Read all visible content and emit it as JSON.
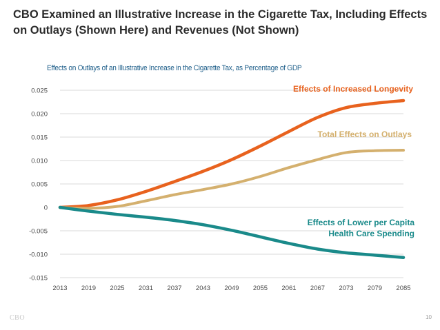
{
  "slide": {
    "title": "CBO Examined an Illustrative Increase in the Cigarette Tax, Including Effects on Outlays (Shown Here) and Revenues (Not Shown)",
    "footer_logo": "CBO",
    "page_number": "10"
  },
  "colors": {
    "longevity": "#e8621e",
    "total": "#d4b06e",
    "lower_spending": "#1a8a8a",
    "grid": "#d9d9d9",
    "chart_title": "#1f5f8a"
  },
  "chart_data": {
    "type": "line",
    "title": "Effects on Outlays of an Illustrative Increase in the Cigarette Tax, as Percentage of GDP",
    "xlabel": "",
    "ylabel": "",
    "x": [
      2013,
      2019,
      2025,
      2031,
      2037,
      2043,
      2049,
      2055,
      2061,
      2067,
      2073,
      2079,
      2085
    ],
    "x_ticks": [
      "2013",
      "2019",
      "2025",
      "2031",
      "2037",
      "2043",
      "2049",
      "2055",
      "2061",
      "2067",
      "2073",
      "2079",
      "2085"
    ],
    "y_ticks": [
      "0.025",
      "0.020",
      "0.015",
      "0.010",
      "0.005",
      "0",
      "-0.005",
      "-0.010",
      "-0.015"
    ],
    "ylim": [
      -0.015,
      0.025
    ],
    "grid": true,
    "series": [
      {
        "name": "Effects of Increased Longevity",
        "color": "#e8621e",
        "values": [
          0.0,
          0.0004,
          0.0016,
          0.0034,
          0.0055,
          0.0077,
          0.0102,
          0.0131,
          0.0162,
          0.0192,
          0.0213,
          0.0222,
          0.0228
        ]
      },
      {
        "name": "Total Effects on Outlays",
        "color": "#d4b06e",
        "values": [
          0.0,
          -0.0002,
          0.0002,
          0.0014,
          0.0027,
          0.0038,
          0.005,
          0.0066,
          0.0085,
          0.0102,
          0.0117,
          0.0121,
          0.0122
        ]
      },
      {
        "name": "Effects of Lower per Capita Health Care Spending",
        "label_lines": [
          "Effects of Lower per Capita",
          "Health Care Spending"
        ],
        "color": "#1a8a8a",
        "values": [
          0.0,
          -0.0008,
          -0.0015,
          -0.0021,
          -0.0028,
          -0.0037,
          -0.0049,
          -0.0063,
          -0.0077,
          -0.0089,
          -0.0097,
          -0.0102,
          -0.0107
        ]
      }
    ]
  }
}
